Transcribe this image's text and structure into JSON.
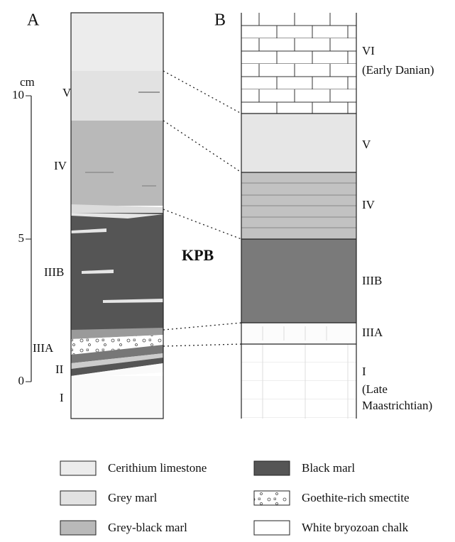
{
  "panel_a": {
    "label": "A",
    "scale": {
      "unit": "cm",
      "ticks": [
        0,
        5,
        10
      ]
    },
    "units": [
      "V",
      "IV",
      "IIIB",
      "IIIA",
      "II",
      "I"
    ]
  },
  "panel_b": {
    "label": "B",
    "units": [
      "VI",
      "(Early Danian)",
      "V",
      "IV",
      "IIIB",
      "IIIA",
      "I",
      "(Late",
      "Maastrichtian)"
    ]
  },
  "boundary": "KPB",
  "legend": [
    "Cerithium limestone",
    "Black marl",
    "Grey marl",
    "Goethite-rich smectite",
    "Grey-black marl",
    "White bryozoan chalk"
  ]
}
